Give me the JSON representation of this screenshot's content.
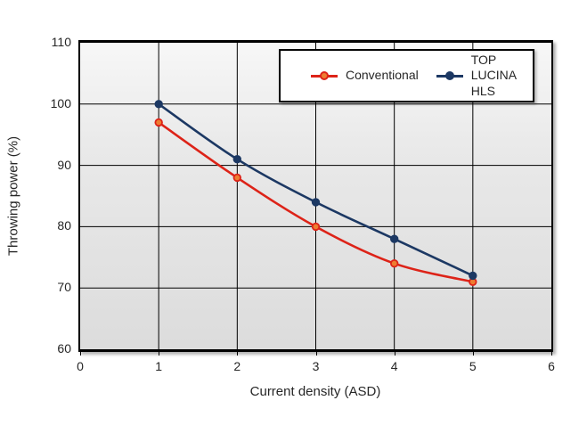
{
  "chart_data": {
    "type": "line",
    "xlabel": "Current density (ASD)",
    "ylabel": "Throwing power (%)",
    "xlim": [
      0,
      6
    ],
    "ylim": [
      60,
      110
    ],
    "x_ticks": [
      0,
      1,
      2,
      3,
      4,
      5,
      6
    ],
    "y_ticks": [
      60,
      70,
      80,
      90,
      100,
      110
    ],
    "grid": true,
    "legend_position": "top-right",
    "x": [
      1,
      2,
      3,
      4,
      5
    ],
    "series": [
      {
        "name": "Conventional",
        "values": [
          97,
          88,
          80,
          74,
          71
        ],
        "line_color": "#dd2318",
        "marker_fill": "#ed7d31",
        "marker_stroke": "#dd2318"
      },
      {
        "name": "TOP LUCINA HLS",
        "values": [
          100,
          91,
          84,
          78,
          72
        ],
        "line_color": "#1c3863",
        "marker_fill": "#1c3863",
        "marker_stroke": "#1c3863"
      }
    ],
    "style": {
      "grid_color": "#000000",
      "plot_bg_top": "#f7f7f7",
      "plot_bg_bottom": "#dcdcdc",
      "axis_border_color": "#000000",
      "text_color": "#262626"
    }
  }
}
